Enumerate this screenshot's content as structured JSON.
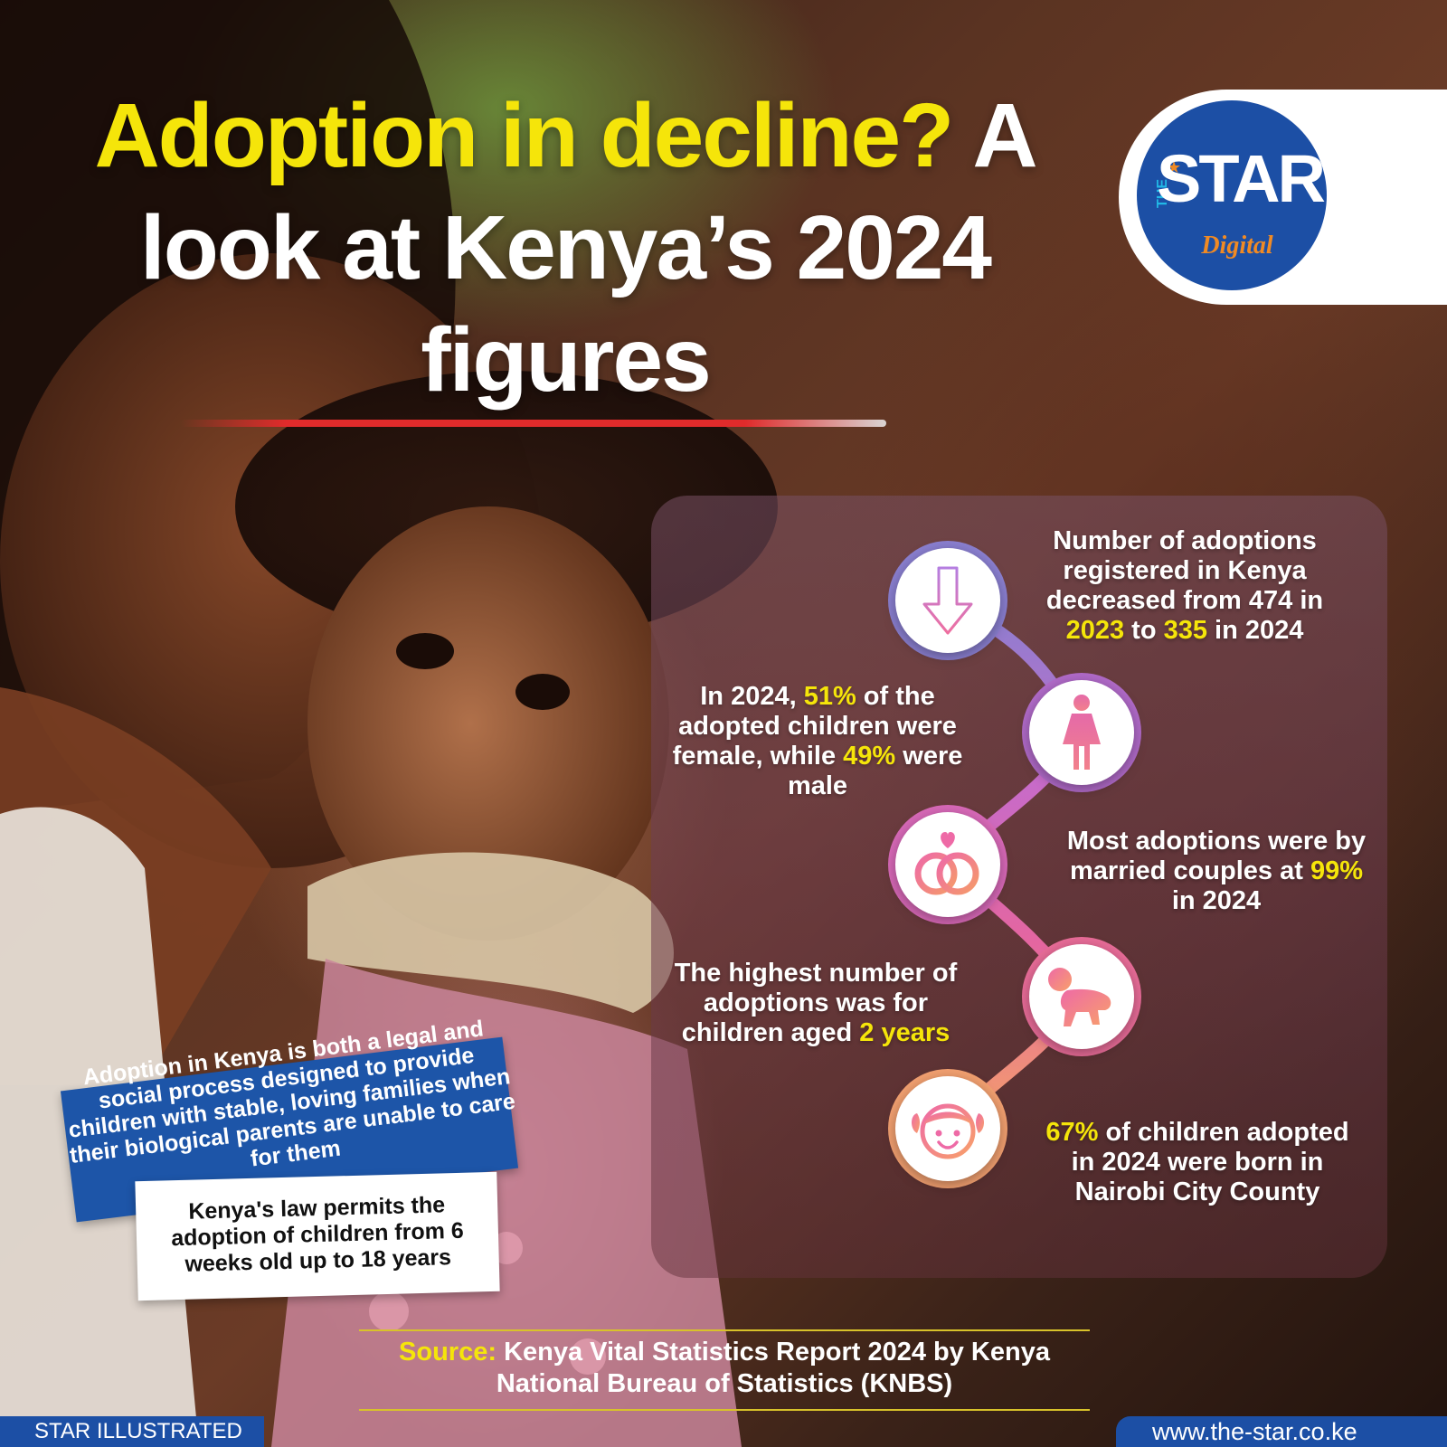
{
  "title": {
    "highlight": "Adoption in decline?",
    "rest": " A look at Kenya’s 2024 figures"
  },
  "logo": {
    "the": "THE",
    "star": "STAR",
    "digital": "Digital",
    "colors": {
      "blue": "#1c4fa5",
      "orange": "#f08a24",
      "cyan": "#21b8e6"
    }
  },
  "facts": [
    {
      "icon": "arrow-down-icon",
      "parts": [
        "Number of adoptions registered in Kenya decreased from 474 in ",
        "2023",
        " to ",
        "335",
        " in 2024"
      ]
    },
    {
      "icon": "female-icon",
      "parts": [
        "In 2024, ",
        "51%",
        " of the adopted children were female, while ",
        "49%",
        " were male"
      ]
    },
    {
      "icon": "rings-heart-icon",
      "parts": [
        "Most adoptions were by married couples at ",
        "99%",
        " in 2024"
      ]
    },
    {
      "icon": "crawling-baby-icon",
      "parts": [
        "The highest number of adoptions was for children aged ",
        "2 years"
      ]
    },
    {
      "icon": "girl-face-icon",
      "parts": [
        "67%",
        " of children adopted in 2024 were born in Nairobi City County"
      ]
    }
  ],
  "callouts": {
    "definition": "Adoption in Kenya is both a legal and social process designed to provide children with stable, loving families when their biological parents are unable to care for them",
    "law": "Kenya's law permits the adoption of children from 6 weeks old up to 18 years"
  },
  "source": {
    "label": "Source:",
    "text": " Kenya Vital Statistics Report 2024 by Kenya National Bureau of Statistics (KNBS)"
  },
  "footer": {
    "left": "STAR ILLUSTRATED",
    "right": "www.the-star.co.ke"
  },
  "colors": {
    "highlight": "#f5e50a",
    "title_rule": "#e02b2b",
    "brand_blue": "#1c4fa5"
  }
}
